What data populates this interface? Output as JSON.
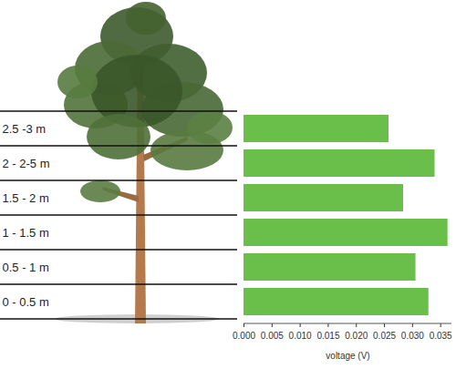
{
  "chart_data": {
    "type": "bar",
    "orientation": "horizontal",
    "categories": [
      "2.5 -3 m",
      "2 - 2-5 m",
      "1.5 - 2 m",
      "1 - 1.5 m",
      "0.5 - 1 m",
      "0 - 0.5 m"
    ],
    "values": [
      0.0258,
      0.034,
      0.0284,
      0.0363,
      0.0306,
      0.0329
    ],
    "color": "#6abf4b",
    "xlabel": "voltage (V)",
    "xlim": [
      0,
      0.037
    ],
    "xticks": [
      {
        "value": 0,
        "label": "0.000"
      },
      0.005,
      {
        "value": 0.01,
        "label": "0.010"
      },
      0.015,
      {
        "value": 0.02,
        "label": "0.020"
      },
      0.025,
      {
        "value": 0.03,
        "label": "0.030"
      },
      0.035
    ],
    "grid": false
  }
}
